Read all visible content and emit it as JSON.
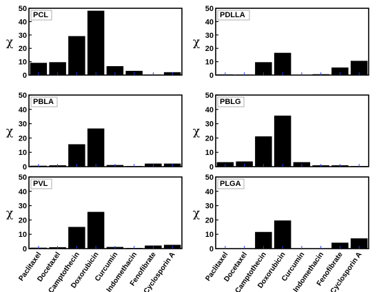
{
  "chart_data": {
    "type": "bar",
    "ylabel": "χ",
    "categories": [
      "Paclitaxel",
      "Docetaxel",
      "Camptothecin",
      "Doxorubicin",
      "Curcumin",
      "Indomethacin",
      "Fenofibrate",
      "Cyclosporin A"
    ],
    "ylim": [
      0,
      50
    ],
    "yticks": [
      "0",
      "10",
      "20",
      "30",
      "40",
      "50"
    ],
    "bar_color": "#000000",
    "tick_color": "#1e3cff",
    "panels": [
      {
        "title": "PCL",
        "values": [
          9,
          9.5,
          29,
          48,
          6.5,
          3,
          0.2,
          2
        ]
      },
      {
        "title": "PDLLA",
        "values": [
          0.3,
          0.2,
          9.5,
          16.5,
          0.1,
          0.5,
          5.5,
          10.5
        ]
      },
      {
        "title": "PBLA",
        "values": [
          0.5,
          0.8,
          15.5,
          26.5,
          1,
          0.3,
          2,
          2
        ]
      },
      {
        "title": "PBLG",
        "values": [
          3,
          3.5,
          21,
          35.5,
          3,
          0.8,
          0.8,
          0.3
        ]
      },
      {
        "title": "PVL",
        "values": [
          0.5,
          0.8,
          15,
          25.5,
          1,
          0.3,
          2,
          2.5
        ]
      },
      {
        "title": "PLGA",
        "values": [
          0.1,
          0.1,
          11.5,
          19.5,
          0.1,
          0.1,
          4,
          7
        ]
      }
    ]
  }
}
